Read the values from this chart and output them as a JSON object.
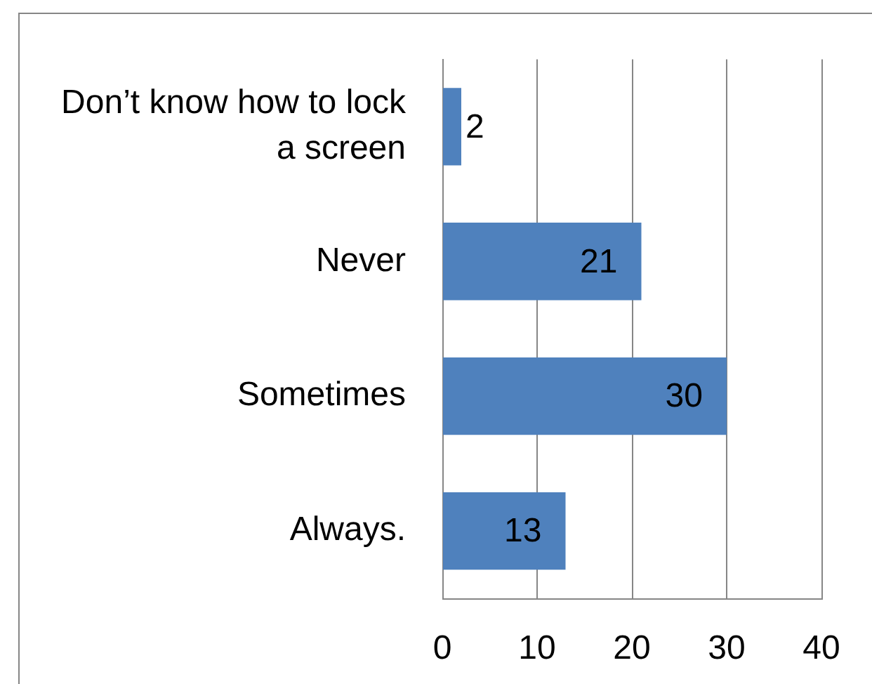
{
  "chart_data": {
    "type": "bar",
    "orientation": "horizontal",
    "categories": [
      "Don’t know how to lock a screen",
      "Never",
      "Sometimes",
      "Always."
    ],
    "values": [
      2,
      21,
      30,
      13
    ],
    "color": "#4f81bd",
    "xlim": [
      0,
      40
    ],
    "xticks": [
      0,
      10,
      20,
      30,
      40
    ],
    "grid": "x",
    "data_labels": true
  }
}
